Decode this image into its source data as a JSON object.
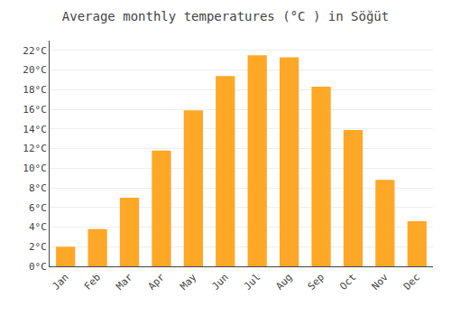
{
  "chart_data": {
    "type": "bar",
    "title": "Average monthly temperatures (°C ) in Söğüt",
    "categories": [
      "Jan",
      "Feb",
      "Mar",
      "Apr",
      "May",
      "Jun",
      "Jul",
      "Aug",
      "Sep",
      "Oct",
      "Nov",
      "Dec"
    ],
    "values": [
      2.0,
      3.8,
      7.0,
      11.8,
      15.9,
      19.4,
      21.5,
      21.3,
      18.3,
      13.9,
      8.8,
      4.6
    ],
    "color": "#FFA726",
    "ylim": [
      0,
      23
    ],
    "yticks": [
      {
        "value": 0,
        "label": "0°C"
      },
      {
        "value": 2,
        "label": "2°C"
      },
      {
        "value": 4,
        "label": "4°C"
      },
      {
        "value": 6,
        "label": "6°C"
      },
      {
        "value": 8,
        "label": "8°C"
      },
      {
        "value": 10,
        "label": "10°C"
      },
      {
        "value": 12,
        "label": "12°C"
      },
      {
        "value": 14,
        "label": "14°C"
      },
      {
        "value": 16,
        "label": "16°C"
      },
      {
        "value": 18,
        "label": "18°C"
      },
      {
        "value": 20,
        "label": "20°C"
      },
      {
        "value": 22,
        "label": "22°C"
      }
    ],
    "grid": true
  }
}
